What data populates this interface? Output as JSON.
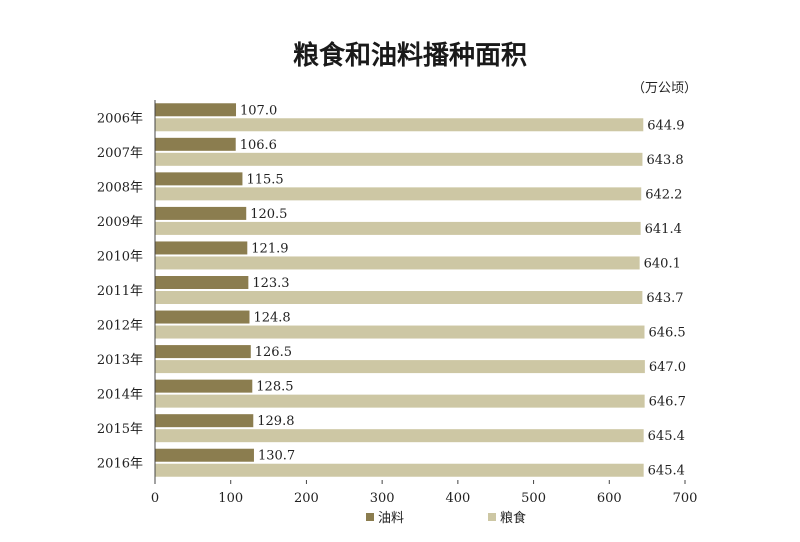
{
  "chart_data": {
    "type": "bar",
    "orientation": "horizontal",
    "title": "粮食和油料播种面积",
    "unit": "（万公顷）",
    "categories": [
      "2006年",
      "2007年",
      "2008年",
      "2009年",
      "2010年",
      "2011年",
      "2012年",
      "2013年",
      "2014年",
      "2015年",
      "2016年"
    ],
    "series": [
      {
        "name": "油料",
        "color": "#8b7d4f",
        "values": [
          107.0,
          106.6,
          115.5,
          120.5,
          121.9,
          123.3,
          124.8,
          126.5,
          128.5,
          129.8,
          130.7
        ]
      },
      {
        "name": "粮食",
        "color": "#cdc7a4",
        "values": [
          644.9,
          643.8,
          642.2,
          641.4,
          640.1,
          643.7,
          646.5,
          647.0,
          646.7,
          645.4,
          645.4
        ]
      }
    ],
    "value_labels": [
      [
        "107.0",
        "106.6",
        "115.5",
        "120.5",
        "121.9",
        "123.3",
        "124.8",
        "126.5",
        "128.5",
        "129.8",
        "130.7"
      ],
      [
        "644.9",
        "643.8",
        "642.2",
        "641.4",
        "640.1",
        "643.7",
        "646.5",
        "647.0",
        "646.7",
        "645.4",
        "645.4"
      ]
    ],
    "xlim": [
      0,
      700
    ],
    "xticks": [
      0,
      100,
      200,
      300,
      400,
      500,
      600,
      700
    ],
    "grid": false,
    "legend_position": "bottom"
  }
}
